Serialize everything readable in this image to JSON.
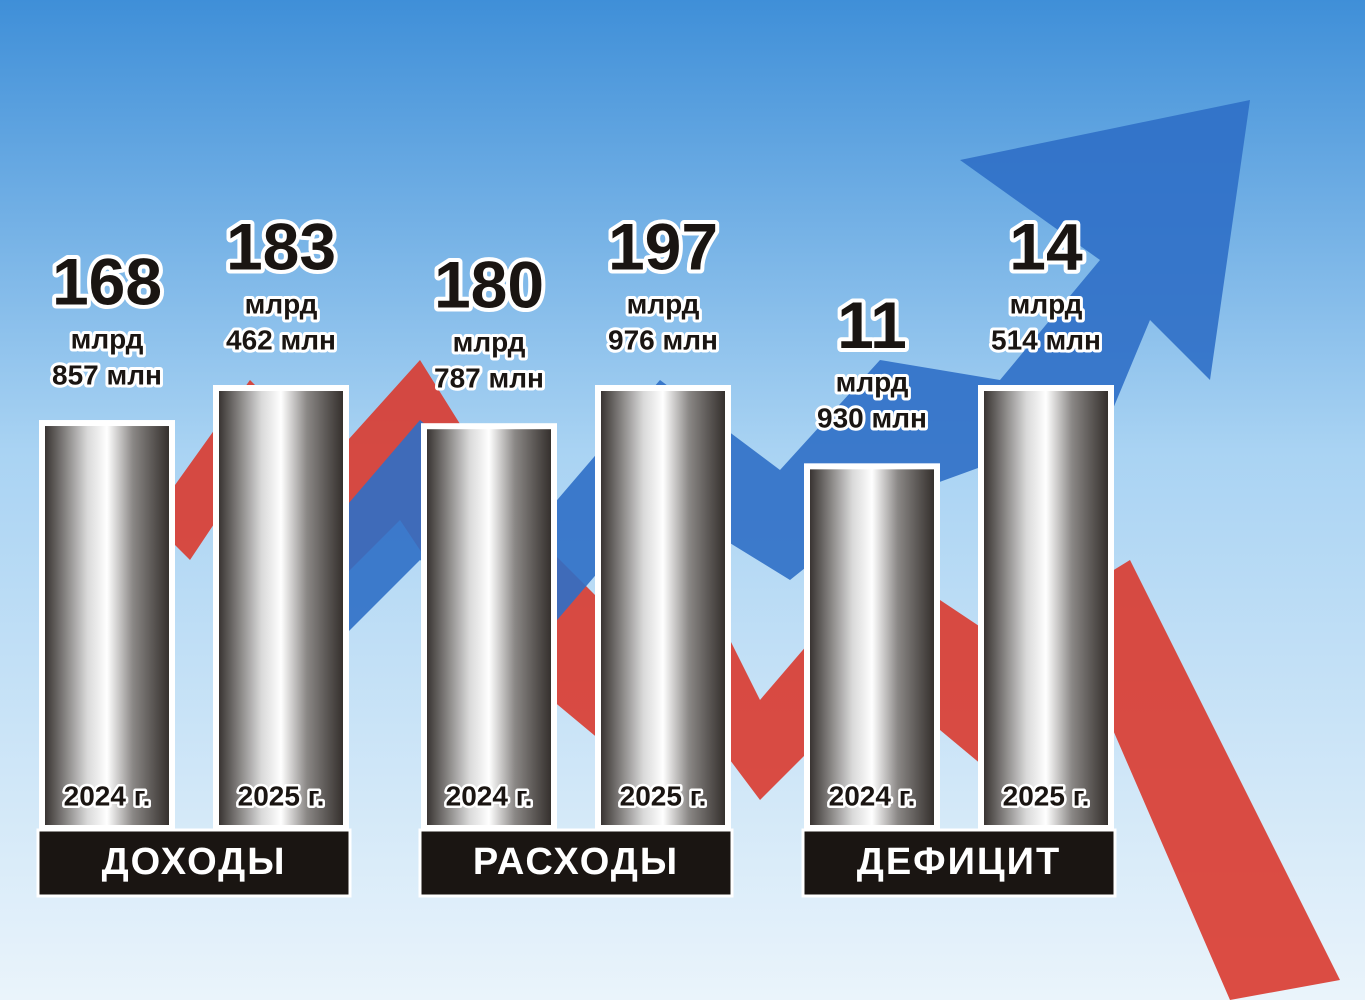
{
  "chart_data": {
    "type": "bar",
    "categories": [
      "ДОХОДЫ",
      "РАСХОДЫ",
      "ДЕФИЦИТ"
    ],
    "series": [
      {
        "name": "2024 г.",
        "values": [
          168.857,
          180.787,
          11.93
        ],
        "value_labels": [
          [
            "168",
            "млрд",
            "857 млн"
          ],
          [
            "180",
            "млрд",
            "787 млн"
          ],
          [
            "11",
            "млрд",
            "930 млн"
          ]
        ]
      },
      {
        "name": "2025 г.",
        "values": [
          183.462,
          197.976,
          14.514
        ],
        "value_labels": [
          [
            "183",
            "млрд",
            "462 млн"
          ],
          [
            "197",
            "млрд",
            "976 млн"
          ],
          [
            "14",
            "млрд",
            "514 млн"
          ]
        ]
      }
    ]
  }
}
